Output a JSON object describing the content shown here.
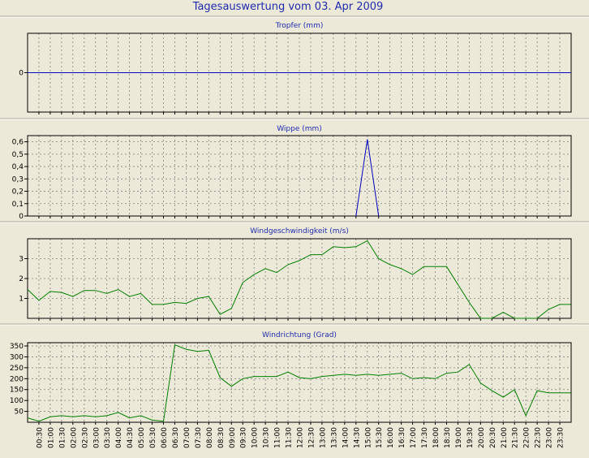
{
  "page": {
    "title": "Tagesauswertung vom 03. Apr 2009",
    "colors": {
      "background": "#ECE9D8",
      "title": "#1F2BB0",
      "axis": "#000000",
      "grid": "#808080",
      "blue_series": "#0000C0",
      "green_series": "#008000"
    }
  },
  "x_axis": {
    "tick_labels": [
      "00:30",
      "01:00",
      "01:30",
      "02:00",
      "02:30",
      "03:00",
      "03:30",
      "04:00",
      "04:30",
      "05:00",
      "05:30",
      "06:00",
      "06:30",
      "07:00",
      "07:30",
      "08:00",
      "08:30",
      "09:00",
      "09:30",
      "10:00",
      "10:30",
      "11:00",
      "11:30",
      "12:00",
      "12:30",
      "13:00",
      "13:30",
      "14:00",
      "14:30",
      "15:00",
      "15:30",
      "16:00",
      "16:30",
      "17:00",
      "17:30",
      "18:00",
      "18:30",
      "19:00",
      "19:30",
      "20:00",
      "20:30",
      "21:00",
      "21:30",
      "22:00",
      "22:30",
      "23:00",
      "23:30"
    ]
  },
  "chart_data": [
    {
      "type": "line",
      "title": "Tropfer (mm)",
      "yticks": [
        "0"
      ],
      "ylim": [
        -1,
        1
      ],
      "color": "blue",
      "x": [
        "00:00",
        "23:59"
      ],
      "values": [
        0,
        0
      ]
    },
    {
      "type": "line",
      "title": "Wippe (mm)",
      "yticks": [
        "0,6",
        "0,5",
        "0,4",
        "0,3",
        "0,2",
        "0,1",
        "0"
      ],
      "ylim": [
        0,
        0.65
      ],
      "color": "blue",
      "x": [
        "14:30",
        "15:00",
        "15:30"
      ],
      "values": [
        0,
        0.62,
        0
      ]
    },
    {
      "type": "line",
      "title": "Windgeschwindigkeit (m/s)",
      "yticks": [
        "3",
        "2",
        "1"
      ],
      "ylim": [
        0,
        4
      ],
      "color": "green",
      "x": [
        "00:00",
        "00:30",
        "01:00",
        "01:30",
        "02:00",
        "02:30",
        "03:00",
        "03:30",
        "04:00",
        "04:30",
        "05:00",
        "05:30",
        "06:00",
        "06:30",
        "07:00",
        "07:30",
        "08:00",
        "08:30",
        "09:00",
        "09:30",
        "10:00",
        "10:30",
        "11:00",
        "11:30",
        "12:00",
        "12:30",
        "13:00",
        "13:30",
        "14:00",
        "14:30",
        "15:00",
        "15:30",
        "16:00",
        "16:30",
        "17:00",
        "17:30",
        "18:00",
        "18:30",
        "19:00",
        "19:30",
        "20:00",
        "20:30",
        "21:00",
        "21:30",
        "22:00",
        "22:30",
        "23:00",
        "23:30",
        "23:59"
      ],
      "values": [
        1.45,
        0.9,
        1.35,
        1.3,
        1.1,
        1.4,
        1.4,
        1.25,
        1.45,
        1.1,
        1.25,
        0.7,
        0.7,
        0.8,
        0.75,
        1.0,
        1.1,
        0.2,
        0.5,
        1.8,
        2.2,
        2.5,
        2.3,
        2.7,
        2.9,
        3.2,
        3.2,
        3.6,
        3.55,
        3.6,
        3.9,
        3.0,
        2.7,
        2.5,
        2.2,
        2.6,
        2.6,
        2.6,
        1.7,
        0.8,
        0.0,
        0.0,
        0.3,
        0.0,
        0.0,
        0.0,
        0.45,
        0.7,
        0.7
      ]
    },
    {
      "type": "line",
      "title": "Windrichtung (Grad)",
      "yticks": [
        "350",
        "300",
        "250",
        "200",
        "150",
        "100",
        "50"
      ],
      "ylim": [
        0,
        365
      ],
      "color": "green",
      "x": [
        "00:00",
        "00:30",
        "01:00",
        "01:30",
        "02:00",
        "02:30",
        "03:00",
        "03:30",
        "04:00",
        "04:30",
        "05:00",
        "05:30",
        "06:00",
        "06:30",
        "07:00",
        "07:30",
        "08:00",
        "08:30",
        "09:00",
        "09:30",
        "10:00",
        "10:30",
        "11:00",
        "11:30",
        "12:00",
        "12:30",
        "13:00",
        "13:30",
        "14:00",
        "14:30",
        "15:00",
        "15:30",
        "16:00",
        "16:30",
        "17:00",
        "17:30",
        "18:00",
        "18:30",
        "19:00",
        "19:30",
        "20:00",
        "20:30",
        "21:00",
        "21:30",
        "22:00",
        "22:30",
        "23:00",
        "23:30",
        "23:59"
      ],
      "values": [
        20,
        5,
        25,
        30,
        25,
        30,
        25,
        30,
        45,
        20,
        30,
        10,
        5,
        355,
        335,
        325,
        330,
        205,
        165,
        200,
        210,
        210,
        210,
        230,
        205,
        200,
        210,
        215,
        220,
        215,
        220,
        215,
        220,
        225,
        200,
        205,
        200,
        225,
        230,
        265,
        180,
        145,
        115,
        150,
        30,
        145,
        135,
        135,
        135
      ]
    }
  ]
}
